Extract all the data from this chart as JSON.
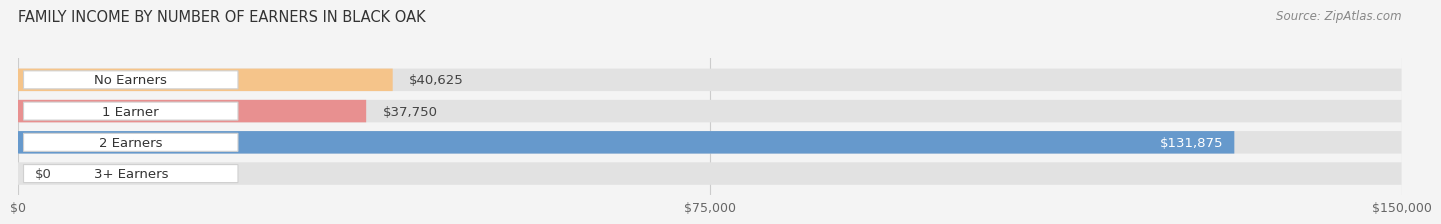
{
  "title": "FAMILY INCOME BY NUMBER OF EARNERS IN BLACK OAK",
  "source": "Source: ZipAtlas.com",
  "categories": [
    "No Earners",
    "1 Earner",
    "2 Earners",
    "3+ Earners"
  ],
  "values": [
    40625,
    37750,
    131875,
    0
  ],
  "bar_colors": [
    "#f5c48a",
    "#e89090",
    "#6699cc",
    "#c9a8d4"
  ],
  "label_colors": [
    "#333333",
    "#333333",
    "#ffffff",
    "#333333"
  ],
  "xlim": [
    0,
    150000
  ],
  "xticks": [
    0,
    75000,
    150000
  ],
  "xtick_labels": [
    "$0",
    "$75,000",
    "$150,000"
  ],
  "value_labels": [
    "$40,625",
    "$37,750",
    "$131,875",
    "$0"
  ],
  "bg_color": "#f4f4f4",
  "bar_bg_color": "#e2e2e2",
  "title_fontsize": 10.5,
  "source_fontsize": 8.5,
  "label_fontsize": 9.5,
  "value_fontsize": 9.5,
  "tick_fontsize": 9
}
